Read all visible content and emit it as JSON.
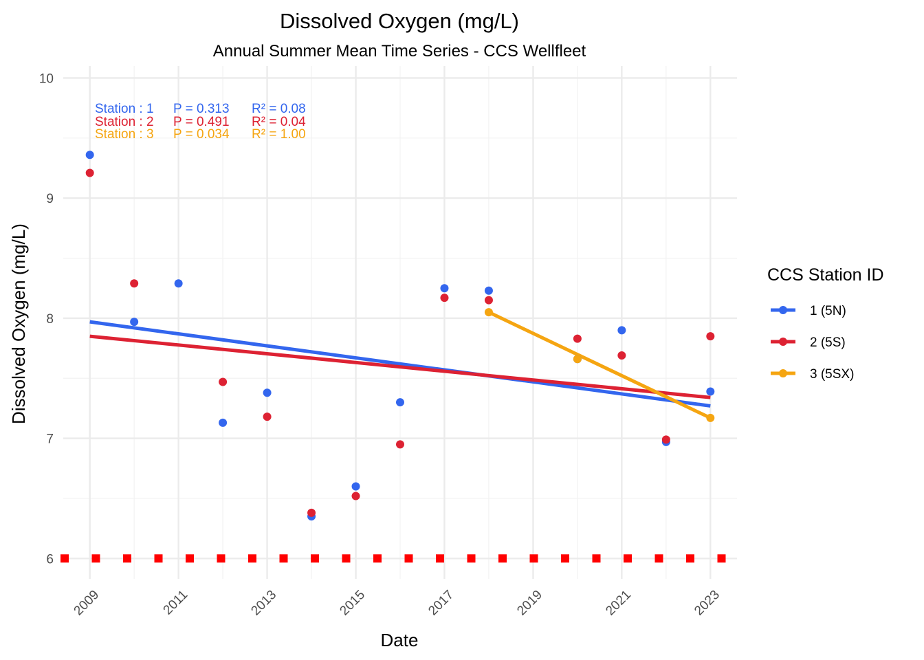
{
  "chart_data": {
    "type": "scatter",
    "title": "Dissolved Oxygen (mg/L)",
    "subtitle": "Annual Summer Mean Time Series - CCS Wellfleet",
    "xlabel": "Date",
    "ylabel": "Dissolved Oxygen (mg/L)",
    "xlim": [
      2008.4,
      2023.6
    ],
    "ylim": [
      5.83,
      10.1
    ],
    "x_ticks": [
      2009,
      2011,
      2013,
      2015,
      2017,
      2019,
      2021,
      2023
    ],
    "y_ticks": [
      6,
      7,
      8,
      9,
      10
    ],
    "grid": true,
    "legend_title": "CCS Station ID",
    "legend_position": "right",
    "series": [
      {
        "name": "1 (5N)",
        "color": "#3366EE",
        "points": [
          {
            "x": 2009,
            "y": 9.36
          },
          {
            "x": 2010,
            "y": 7.97
          },
          {
            "x": 2011,
            "y": 8.29
          },
          {
            "x": 2012,
            "y": 7.13
          },
          {
            "x": 2013,
            "y": 7.38
          },
          {
            "x": 2014,
            "y": 6.35
          },
          {
            "x": 2015,
            "y": 6.6
          },
          {
            "x": 2016,
            "y": 7.3
          },
          {
            "x": 2017,
            "y": 8.25
          },
          {
            "x": 2018,
            "y": 8.23
          },
          {
            "x": 2020,
            "y": 7.66
          },
          {
            "x": 2021,
            "y": 7.9
          },
          {
            "x": 2022,
            "y": 6.97
          },
          {
            "x": 2023,
            "y": 7.39
          }
        ],
        "trend": {
          "x": [
            2009,
            2023
          ],
          "y": [
            7.97,
            7.27
          ]
        },
        "stat": {
          "station_label": "Station : 1",
          "p_text": "P = 0.313",
          "r2_text": "R² = 0.08"
        }
      },
      {
        "name": "2 (5S)",
        "color": "#DD2233",
        "points": [
          {
            "x": 2009,
            "y": 9.21
          },
          {
            "x": 2010,
            "y": 8.29
          },
          {
            "x": 2012,
            "y": 7.47
          },
          {
            "x": 2013,
            "y": 7.18
          },
          {
            "x": 2014,
            "y": 6.38
          },
          {
            "x": 2015,
            "y": 6.52
          },
          {
            "x": 2016,
            "y": 6.95
          },
          {
            "x": 2017,
            "y": 8.17
          },
          {
            "x": 2018,
            "y": 8.15
          },
          {
            "x": 2020,
            "y": 7.83
          },
          {
            "x": 2021,
            "y": 7.69
          },
          {
            "x": 2022,
            "y": 6.99
          },
          {
            "x": 2023,
            "y": 7.85
          }
        ],
        "trend": {
          "x": [
            2009,
            2023
          ],
          "y": [
            7.85,
            7.34
          ]
        },
        "stat": {
          "station_label": "Station : 2",
          "p_text": "P = 0.491",
          "r2_text": "R² = 0.04"
        }
      },
      {
        "name": "3 (5SX)",
        "color": "#F5A511",
        "points": [
          {
            "x": 2018,
            "y": 8.05
          },
          {
            "x": 2020,
            "y": 7.66
          },
          {
            "x": 2023,
            "y": 7.17
          }
        ],
        "trend": {
          "x": [
            2018,
            2023
          ],
          "y": [
            8.05,
            7.17
          ]
        },
        "stat": {
          "station_label": "Station : 3",
          "p_text": "P = 0.034",
          "r2_text": "R² = 1.00"
        }
      }
    ],
    "reference_line": {
      "y": 6,
      "color": "#FF0000",
      "style": "dotted-square"
    }
  }
}
